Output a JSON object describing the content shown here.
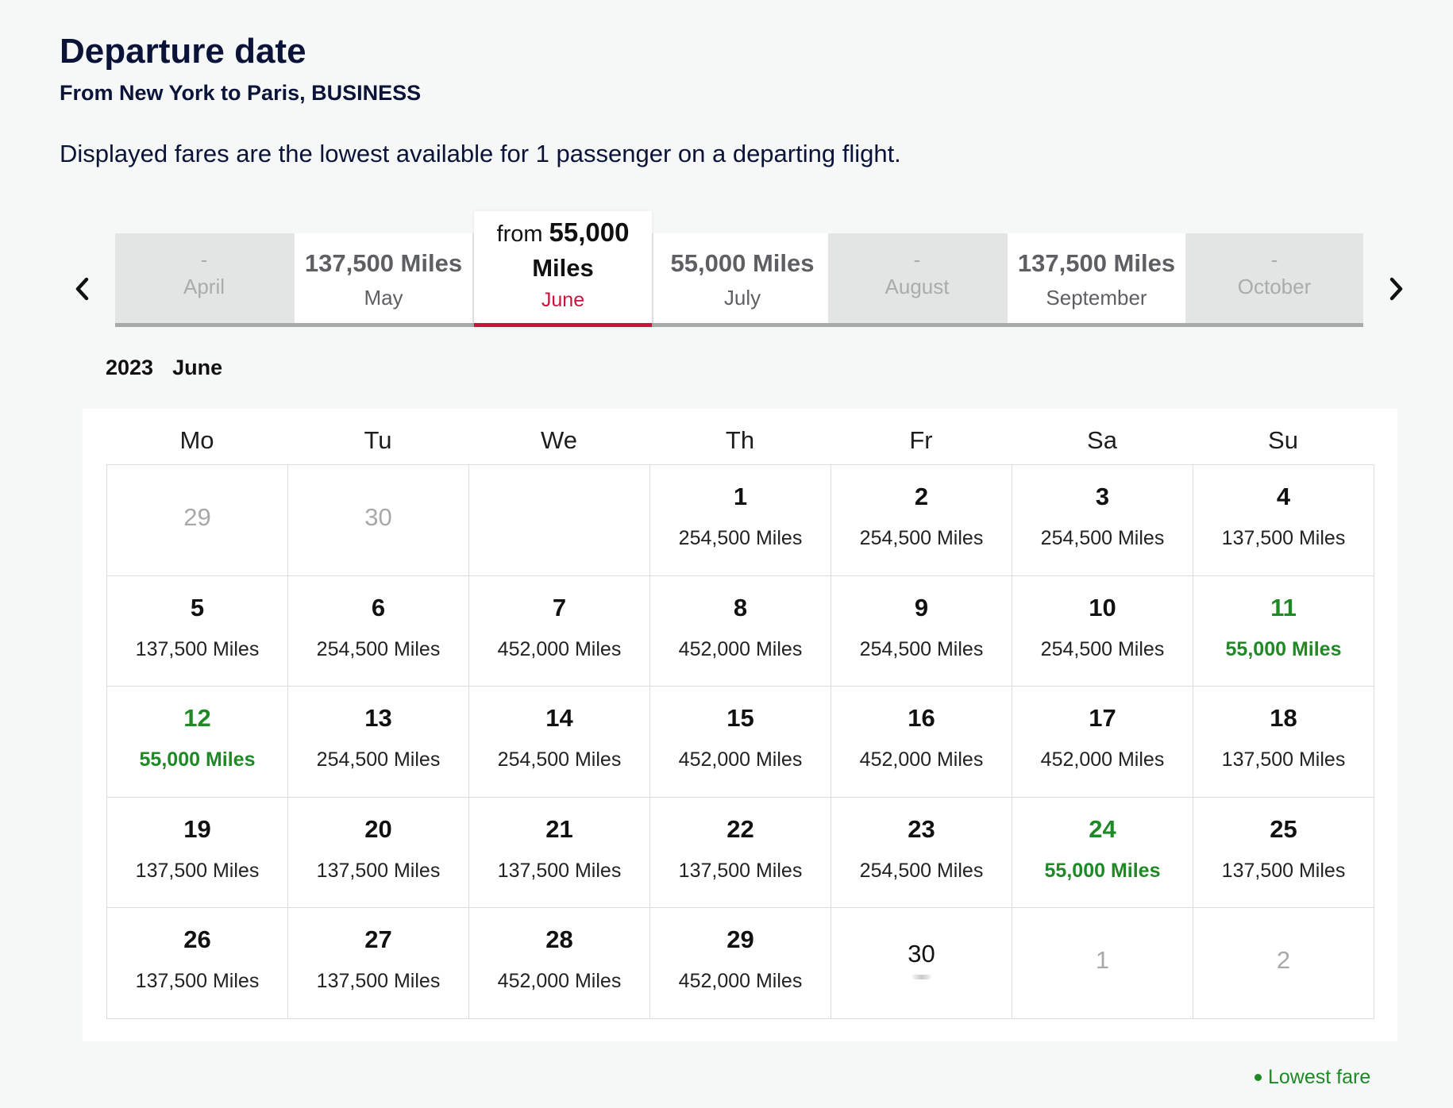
{
  "header": {
    "title": "Departure date",
    "subtitle": "From New York to Paris, BUSINESS",
    "note": "Displayed fares are the lowest available for 1 passenger on a departing flight."
  },
  "carousel": {
    "prev_icon": "chevron-left-icon",
    "next_icon": "chevron-right-icon",
    "months": [
      {
        "name": "April",
        "price": "-",
        "state": "unavailable"
      },
      {
        "name": "May",
        "price": "137,500 Miles",
        "state": "available"
      },
      {
        "name": "June",
        "prefix": "from",
        "amount": "55,000",
        "unit": "Miles",
        "state": "selected"
      },
      {
        "name": "July",
        "price": "55,000 Miles",
        "state": "available"
      },
      {
        "name": "August",
        "price": "-",
        "state": "unavailable"
      },
      {
        "name": "September",
        "price": "137,500 Miles",
        "state": "available"
      },
      {
        "name": "October",
        "price": "-",
        "state": "unavailable"
      }
    ]
  },
  "calendar": {
    "year": "2023",
    "month": "June",
    "weekdays": [
      "Mo",
      "Tu",
      "We",
      "Th",
      "Fr",
      "Sa",
      "Su"
    ],
    "lowest_color": "#1e8a25",
    "cells": [
      {
        "day": "29",
        "type": "out"
      },
      {
        "day": "30",
        "type": "out"
      },
      {
        "day": "",
        "type": "empty"
      },
      {
        "day": "1",
        "price": "254,500 Miles"
      },
      {
        "day": "2",
        "price": "254,500 Miles"
      },
      {
        "day": "3",
        "price": "254,500 Miles"
      },
      {
        "day": "4",
        "price": "137,500 Miles"
      },
      {
        "day": "5",
        "price": "137,500 Miles"
      },
      {
        "day": "6",
        "price": "254,500 Miles"
      },
      {
        "day": "7",
        "price": "452,000 Miles"
      },
      {
        "day": "8",
        "price": "452,000 Miles"
      },
      {
        "day": "9",
        "price": "254,500 Miles"
      },
      {
        "day": "10",
        "price": "254,500 Miles"
      },
      {
        "day": "11",
        "price": "55,000 Miles",
        "lowest": true
      },
      {
        "day": "12",
        "price": "55,000 Miles",
        "lowest": true
      },
      {
        "day": "13",
        "price": "254,500 Miles"
      },
      {
        "day": "14",
        "price": "254,500 Miles"
      },
      {
        "day": "15",
        "price": "452,000 Miles"
      },
      {
        "day": "16",
        "price": "452,000 Miles"
      },
      {
        "day": "17",
        "price": "452,000 Miles"
      },
      {
        "day": "18",
        "price": "137,500 Miles"
      },
      {
        "day": "19",
        "price": "137,500 Miles"
      },
      {
        "day": "20",
        "price": "137,500 Miles"
      },
      {
        "day": "21",
        "price": "137,500 Miles"
      },
      {
        "day": "22",
        "price": "137,500 Miles"
      },
      {
        "day": "23",
        "price": "254,500 Miles"
      },
      {
        "day": "24",
        "price": "55,000 Miles",
        "lowest": true
      },
      {
        "day": "25",
        "price": "137,500 Miles"
      },
      {
        "day": "26",
        "price": "137,500 Miles"
      },
      {
        "day": "27",
        "price": "137,500 Miles"
      },
      {
        "day": "28",
        "price": "452,000 Miles"
      },
      {
        "day": "29",
        "price": "452,000 Miles"
      },
      {
        "day": "30",
        "type": "nofare"
      },
      {
        "day": "1",
        "type": "out"
      },
      {
        "day": "2",
        "type": "out"
      }
    ]
  },
  "legend": {
    "label": "Lowest fare"
  }
}
